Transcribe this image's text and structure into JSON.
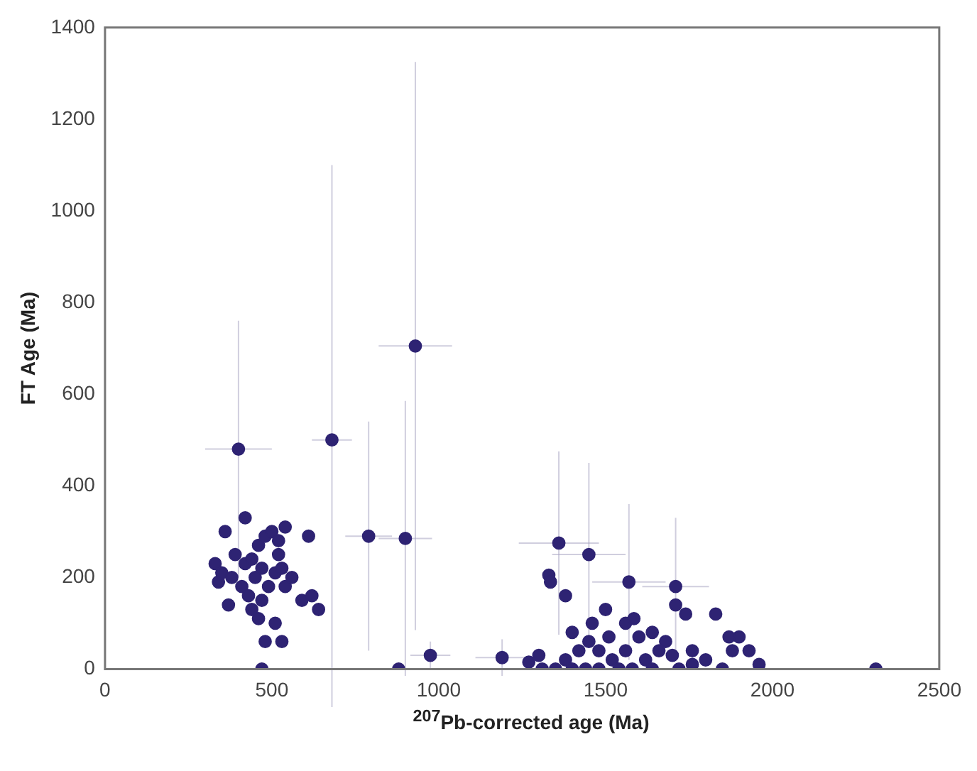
{
  "chart_data": {
    "type": "scatter",
    "xlabel": "$^{207}$Pb-corrected age (Ma)",
    "ylabel": "FT Age (Ma)",
    "xlim": [
      0,
      2500
    ],
    "xticks": [
      0,
      500,
      1000,
      1500,
      2000,
      2500
    ],
    "ylim": [
      0,
      1400
    ],
    "yticks": [
      0,
      200,
      400,
      600,
      800,
      1000,
      1200,
      1400
    ],
    "grid": false,
    "legend": false,
    "marker": "circle",
    "series": [
      {
        "color": "#2e2373",
        "x": [
          330,
          340,
          350,
          360,
          370,
          380,
          390,
          400,
          410,
          420,
          420,
          430,
          440,
          440,
          450,
          460,
          460,
          470,
          470,
          480,
          480,
          490,
          500,
          510,
          510,
          520,
          520,
          530,
          530,
          540,
          540,
          560,
          590,
          610,
          620,
          640,
          470,
          680,
          790,
          900,
          930,
          880,
          975,
          1360,
          1330,
          1335,
          1450,
          1380,
          1570,
          1560,
          1585,
          1710,
          1710,
          1740,
          1830,
          1460,
          1500,
          1900,
          1870,
          1880,
          1960,
          2310,
          1190,
          1270,
          1300,
          1400,
          1450,
          1600,
          1640,
          1680,
          1760,
          1800,
          1850,
          1720,
          1510,
          1350,
          1380,
          1420,
          1440,
          1480,
          1520,
          1560,
          1620,
          1660,
          1700,
          1930,
          1400,
          1480,
          1540,
          1580,
          1640,
          1760,
          1310
        ],
        "values": [
          230,
          190,
          210,
          300,
          140,
          200,
          250,
          480,
          180,
          330,
          230,
          160,
          240,
          130,
          200,
          270,
          110,
          150,
          220,
          60,
          290,
          180,
          300,
          210,
          100,
          280,
          250,
          220,
          60,
          310,
          180,
          200,
          150,
          290,
          160,
          130,
          0,
          500,
          290,
          285,
          705,
          0,
          30,
          275,
          205,
          190,
          250,
          160,
          190,
          100,
          110,
          180,
          140,
          120,
          120,
          100,
          130,
          70,
          70,
          40,
          10,
          0,
          25,
          15,
          30,
          80,
          60,
          70,
          80,
          60,
          40,
          20,
          0,
          0,
          70,
          0,
          20,
          40,
          0,
          40,
          20,
          40,
          20,
          40,
          30,
          40,
          0,
          0,
          0,
          0,
          0,
          10,
          0
        ],
        "xerrors": [
          null,
          null,
          null,
          null,
          null,
          null,
          null,
          100,
          null,
          null,
          null,
          null,
          null,
          null,
          null,
          null,
          null,
          null,
          null,
          null,
          null,
          null,
          null,
          null,
          null,
          null,
          null,
          null,
          null,
          null,
          null,
          null,
          null,
          null,
          null,
          null,
          null,
          60,
          70,
          80,
          110,
          null,
          60,
          120,
          null,
          null,
          110,
          null,
          110,
          null,
          null,
          100,
          null,
          null,
          null,
          null,
          null,
          null,
          null,
          null,
          null,
          null,
          80,
          null,
          null,
          null,
          null,
          null,
          null,
          null,
          null,
          null,
          null,
          null,
          null,
          null,
          null,
          null,
          null,
          null,
          null,
          null,
          null,
          null,
          null,
          null,
          null,
          null,
          null,
          null,
          null,
          null,
          null
        ],
        "errors": [
          null,
          null,
          null,
          null,
          null,
          null,
          null,
          280,
          null,
          null,
          null,
          null,
          null,
          null,
          null,
          null,
          null,
          null,
          null,
          null,
          null,
          null,
          null,
          null,
          null,
          null,
          null,
          null,
          null,
          null,
          null,
          null,
          null,
          null,
          null,
          null,
          null,
          600,
          250,
          300,
          620,
          null,
          30,
          200,
          null,
          null,
          200,
          null,
          170,
          null,
          null,
          150,
          null,
          null,
          null,
          null,
          null,
          null,
          null,
          null,
          null,
          null,
          40,
          null,
          null,
          null,
          null,
          null,
          null,
          null,
          null,
          null,
          null,
          null,
          null,
          null,
          null,
          null,
          null,
          null,
          null,
          null,
          null,
          null,
          null,
          null,
          null,
          null,
          null,
          null,
          null,
          null,
          null
        ]
      }
    ]
  }
}
